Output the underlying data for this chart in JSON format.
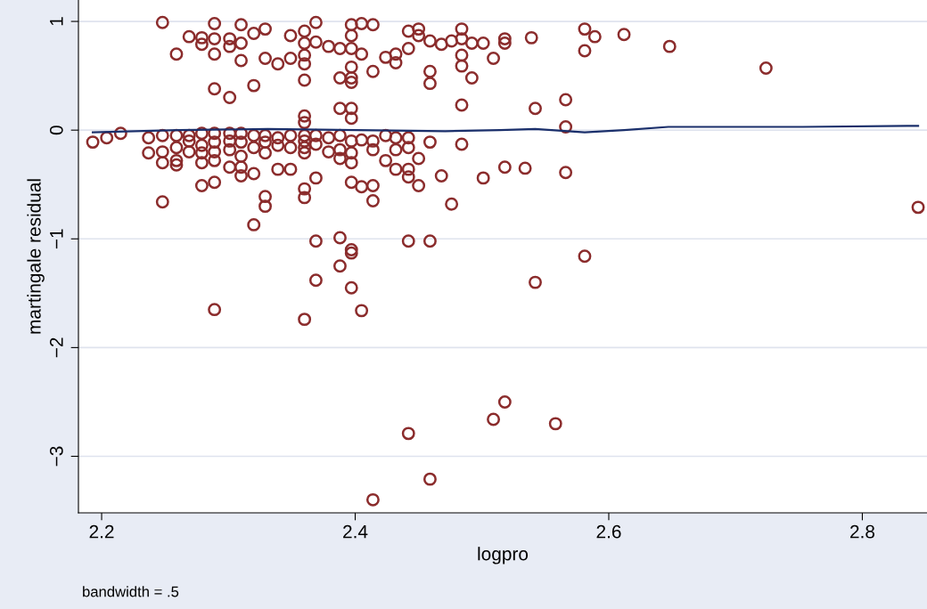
{
  "chart_data": {
    "type": "scatter",
    "xlabel": "logpro",
    "ylabel": "martingale residual",
    "xlim": [
      2.1817,
      2.851
    ],
    "ylim": [
      -3.52,
      1.197
    ],
    "xticks": [
      2.2,
      2.4,
      2.6,
      2.8
    ],
    "yticks": [
      {
        "value": -3,
        "label": "−3"
      },
      {
        "value": -2,
        "label": "−2"
      },
      {
        "value": -1,
        "label": "−1"
      },
      0,
      1
    ],
    "grid": "y",
    "annotations": [
      "bandwidth = .5"
    ],
    "series": [
      {
        "color": "#8b2c2c",
        "marker": "circle",
        "x": [
          2.248,
          2.259,
          2.269,
          2.279,
          2.279,
          2.289,
          2.289,
          2.289,
          2.289,
          2.301,
          2.301,
          2.301,
          2.31,
          2.31,
          2.31,
          2.32,
          2.32,
          2.329,
          2.329,
          2.339,
          2.349,
          2.349,
          2.36,
          2.36,
          2.36,
          2.36,
          2.36,
          2.36,
          2.36,
          2.369,
          2.369,
          2.379,
          2.388,
          2.388,
          2.388,
          2.397,
          2.397,
          2.397,
          2.397,
          2.397,
          2.397,
          2.397,
          2.397,
          2.405,
          2.405,
          2.414,
          2.414,
          2.424,
          2.432,
          2.432,
          2.442,
          2.442,
          2.45,
          2.45,
          2.459,
          2.459,
          2.459,
          2.468,
          2.476,
          2.484,
          2.484,
          2.484,
          2.484,
          2.484,
          2.492,
          2.492,
          2.501,
          2.509,
          2.518,
          2.518,
          2.539,
          2.542,
          2.566,
          2.581,
          2.581,
          2.589,
          2.612,
          2.648,
          2.724,
          2.566,
          2.193,
          2.204,
          2.215,
          2.237,
          2.237,
          2.248,
          2.248,
          2.248,
          2.248,
          2.259,
          2.259,
          2.259,
          2.259,
          2.269,
          2.269,
          2.269,
          2.279,
          2.279,
          2.279,
          2.279,
          2.279,
          2.289,
          2.289,
          2.289,
          2.289,
          2.289,
          2.289,
          2.301,
          2.301,
          2.301,
          2.301,
          2.31,
          2.31,
          2.31,
          2.31,
          2.31,
          2.32,
          2.32,
          2.32,
          2.32,
          2.329,
          2.329,
          2.329,
          2.329,
          2.329,
          2.339,
          2.339,
          2.339,
          2.349,
          2.349,
          2.349,
          2.36,
          2.36,
          2.36,
          2.36,
          2.36,
          2.36,
          2.36,
          2.369,
          2.369,
          2.369,
          2.369,
          2.369,
          2.379,
          2.379,
          2.388,
          2.388,
          2.388,
          2.388,
          2.388,
          2.397,
          2.397,
          2.397,
          2.397,
          2.397,
          2.397,
          2.397,
          2.405,
          2.405,
          2.405,
          2.414,
          2.414,
          2.414,
          2.414,
          2.414,
          2.424,
          2.424,
          2.432,
          2.432,
          2.432,
          2.442,
          2.442,
          2.442,
          2.442,
          2.442,
          2.442,
          2.45,
          2.45,
          2.459,
          2.459,
          2.459,
          2.468,
          2.476,
          2.484,
          2.501,
          2.509,
          2.518,
          2.518,
          2.534,
          2.542,
          2.558,
          2.566,
          2.581,
          2.844
        ],
        "values": [
          0.99,
          0.7,
          0.86,
          0.85,
          0.79,
          0.98,
          0.84,
          0.7,
          0.38,
          0.84,
          0.77,
          0.3,
          0.97,
          0.8,
          0.64,
          0.41,
          0.89,
          0.93,
          0.66,
          0.61,
          0.87,
          0.66,
          0.91,
          0.8,
          0.69,
          0.61,
          0.46,
          0.13,
          0.07,
          0.99,
          0.81,
          0.77,
          0.75,
          0.48,
          0.2,
          0.97,
          0.87,
          0.75,
          0.58,
          0.48,
          0.44,
          0.2,
          0.11,
          0.98,
          0.7,
          0.97,
          0.54,
          0.67,
          0.7,
          0.62,
          0.91,
          0.75,
          0.93,
          0.87,
          0.82,
          0.54,
          0.43,
          0.79,
          0.82,
          0.93,
          0.84,
          0.69,
          0.59,
          0.23,
          0.8,
          0.48,
          0.8,
          0.66,
          0.84,
          0.8,
          0.85,
          0.2,
          0.28,
          0.93,
          0.73,
          0.86,
          0.88,
          0.77,
          0.57,
          0.03,
          -0.11,
          -0.07,
          -0.03,
          -0.07,
          -0.21,
          -0.05,
          -0.2,
          -0.3,
          -0.66,
          -0.05,
          -0.16,
          -0.28,
          -0.32,
          -0.05,
          -0.1,
          -0.2,
          -0.03,
          -0.14,
          -0.21,
          -0.3,
          -0.51,
          -0.03,
          -0.11,
          -0.2,
          -0.28,
          -0.48,
          -1.65,
          -0.03,
          -0.1,
          -0.18,
          -0.34,
          -0.03,
          -0.11,
          -0.24,
          -0.34,
          -0.42,
          -0.05,
          -0.16,
          -0.4,
          -0.87,
          -0.05,
          -0.11,
          -0.21,
          -0.61,
          -0.7,
          -0.07,
          -0.14,
          -0.36,
          -0.05,
          -0.16,
          -0.36,
          -0.05,
          -0.1,
          -0.16,
          -0.21,
          -0.54,
          -0.62,
          -1.74,
          -0.05,
          -0.13,
          -0.44,
          -1.02,
          -1.38,
          -0.07,
          -0.2,
          -0.05,
          -0.18,
          -0.26,
          -0.99,
          -1.25,
          -0.1,
          -0.21,
          -0.3,
          -0.48,
          -1.1,
          -1.13,
          -1.45,
          -0.09,
          -0.52,
          -1.66,
          -0.1,
          -0.18,
          -0.51,
          -0.65,
          -3.4,
          -0.05,
          -0.28,
          -0.07,
          -0.18,
          -0.36,
          -0.07,
          -0.16,
          -0.36,
          -0.43,
          -1.02,
          -2.79,
          -0.26,
          -0.51,
          -0.11,
          -1.02,
          -3.21,
          -0.42,
          -0.68,
          -0.13,
          -0.44,
          -2.66,
          -0.34,
          -2.5,
          -0.35,
          -1.4,
          -2.7,
          -0.39,
          -1.16,
          -0.71
        ]
      },
      {
        "type": "line",
        "color": "#1a2f6b",
        "line_style": "solid",
        "marker": "none",
        "x": [
          2.193,
          2.26,
          2.331,
          2.401,
          2.471,
          2.514,
          2.542,
          2.581,
          2.612,
          2.647,
          2.682,
          2.753,
          2.844
        ],
        "values": [
          -0.02,
          0,
          0.01,
          0,
          -0.01,
          0,
          0.01,
          -0.02,
          0,
          0.03,
          0.03,
          0.03,
          0.04
        ]
      }
    ]
  }
}
